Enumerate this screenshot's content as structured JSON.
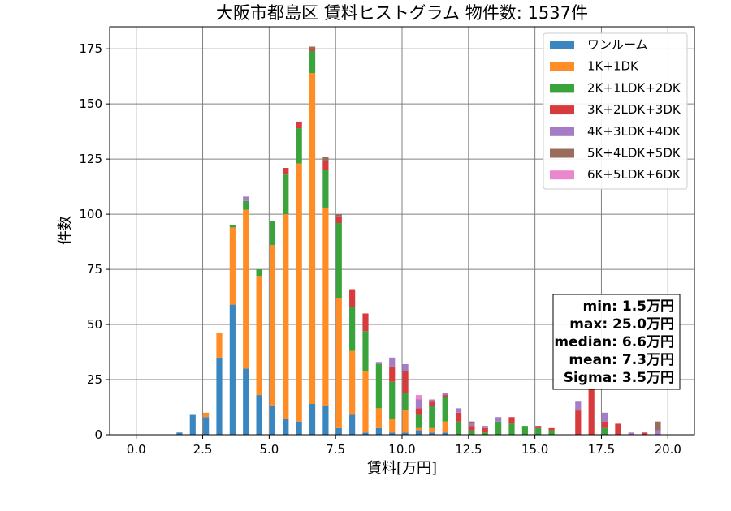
{
  "chart_data": {
    "type": "bar",
    "stacked": true,
    "title": "大阪市都島区 賃料ヒストグラム  物件数: 1537件",
    "xlabel": "賃料[万円]",
    "ylabel": "件数",
    "xlim": [
      -1.0,
      21.0
    ],
    "ylim": [
      0,
      185
    ],
    "xticks": [
      "0.0",
      "2.5",
      "5.0",
      "7.5",
      "10.0",
      "12.5",
      "15.0",
      "17.5",
      "20.0"
    ],
    "xtick_values": [
      0,
      2.5,
      5,
      7.5,
      10,
      12.5,
      15,
      17.5,
      20
    ],
    "yticks": [
      "0",
      "25",
      "50",
      "75",
      "100",
      "125",
      "150",
      "175"
    ],
    "ytick_values": [
      0,
      25,
      50,
      75,
      100,
      125,
      150,
      175
    ],
    "grid": true,
    "legend_position": "top-right",
    "bin_width": 0.25,
    "bins": [
      1.5,
      2.0,
      2.5,
      3.0,
      3.5,
      4.0,
      4.5,
      5.0,
      5.5,
      6.0,
      6.5,
      7.0,
      7.5,
      8.0,
      8.5,
      9.0,
      9.5,
      10.0,
      10.5,
      11.0,
      11.5,
      12.0,
      12.5,
      13.0,
      13.5,
      14.0,
      14.5,
      15.0,
      15.5,
      16.0,
      16.5,
      17.0,
      17.5,
      18.0,
      18.5,
      19.0,
      19.5
    ],
    "series": [
      {
        "name": "ワンルーム",
        "color": "#3a86c0",
        "values": [
          1,
          9,
          8,
          35,
          59,
          30,
          18,
          13,
          7,
          6,
          14,
          13,
          3,
          9,
          1,
          3,
          1,
          1,
          2,
          1,
          1,
          0,
          0,
          0,
          0,
          0,
          0,
          0,
          0,
          0,
          0,
          0,
          0,
          0,
          0,
          0,
          0
        ]
      },
      {
        "name": "1K+1DK",
        "color": "#ff8c25",
        "values": [
          0,
          0,
          2,
          11,
          35,
          72,
          54,
          73,
          93,
          117,
          150,
          90,
          59,
          29,
          28,
          9,
          6,
          10,
          1,
          2,
          5,
          0,
          0,
          0,
          0,
          0,
          0,
          0,
          0,
          0,
          0,
          0,
          0,
          0,
          0,
          0,
          0
        ]
      },
      {
        "name": "2K+1LDK+2DK",
        "color": "#3ba33b",
        "values": [
          0,
          0,
          0,
          0,
          1,
          4,
          3,
          11,
          18,
          16,
          10,
          17,
          34,
          20,
          18,
          20,
          17,
          8,
          6,
          10,
          11,
          6,
          2,
          1,
          6,
          5,
          4,
          3,
          2,
          0,
          0,
          0,
          3,
          0,
          0,
          0,
          0
        ]
      },
      {
        "name": "3K+2LDK+3DK",
        "color": "#d73b3d",
        "values": [
          0,
          0,
          0,
          0,
          0,
          0,
          0,
          0,
          3,
          3,
          1,
          4,
          3,
          8,
          8,
          0,
          7,
          10,
          3,
          2,
          1,
          4,
          2,
          2,
          0,
          3,
          0,
          1,
          1,
          0,
          11,
          21,
          3,
          5,
          0,
          1,
          0
        ]
      },
      {
        "name": "4K+3LDK+4DK",
        "color": "#a47dc6",
        "values": [
          0,
          0,
          0,
          0,
          0,
          2,
          0,
          0,
          0,
          0,
          0,
          0,
          0,
          0,
          0,
          1,
          4,
          3,
          4,
          1,
          1,
          2,
          1,
          1,
          2,
          0,
          0,
          0,
          0,
          0,
          4,
          0,
          4,
          0,
          1,
          0,
          2
        ]
      },
      {
        "name": "5K+4LDK+5DK",
        "color": "#9b6b5c",
        "values": [
          0,
          0,
          0,
          0,
          0,
          0,
          0,
          0,
          0,
          0,
          1,
          2,
          1,
          0,
          0,
          0,
          0,
          0,
          0,
          0,
          0,
          0,
          1,
          0,
          0,
          0,
          0,
          0,
          0,
          0,
          0,
          0,
          0,
          0,
          0,
          0,
          4
        ]
      },
      {
        "name": "6K+5LDK+6DK",
        "color": "#ea88cd",
        "values": [
          0,
          0,
          0,
          0,
          0,
          0,
          0,
          0,
          0,
          0,
          0,
          0,
          0,
          0,
          0,
          0,
          0,
          0,
          2,
          0,
          0,
          0,
          0,
          0,
          0,
          0,
          0,
          0,
          0,
          0,
          0,
          0,
          0,
          0,
          0,
          0,
          0
        ]
      }
    ],
    "stats": {
      "min": "min: 1.5万円",
      "max": "max: 25.0万円",
      "median": "median: 6.6万円",
      "mean": "mean: 7.3万円",
      "sigma": "Sigma: 3.5万円"
    }
  }
}
